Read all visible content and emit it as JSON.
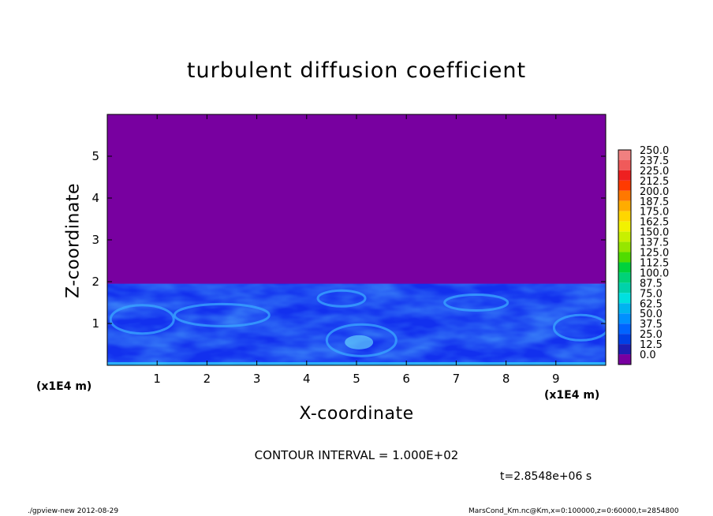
{
  "chart_data": {
    "type": "heatmap",
    "title": "turbulent diffusion coefficient",
    "xlabel": "X-coordinate",
    "ylabel": "Z-coordinate",
    "x_unit": "(x1E4 m)",
    "xlim": [
      0,
      10
    ],
    "ylim": [
      0,
      6
    ],
    "x_ticks": [
      1,
      2,
      3,
      4,
      5,
      6,
      7,
      8,
      9
    ],
    "y_ticks": [
      1,
      2,
      3,
      4,
      5
    ],
    "boundary_layer_top": 1.95,
    "color_levels": [
      "250.0",
      "237.5",
      "225.0",
      "212.5",
      "200.0",
      "187.5",
      "175.0",
      "162.5",
      "150.0",
      "137.5",
      "125.0",
      "112.5",
      "100.0",
      "87.5",
      "75.0",
      "62.5",
      "50.0",
      "37.5",
      "25.0",
      "12.5",
      "0.0"
    ],
    "colors": [
      "#f08080",
      "#f05a5a",
      "#ee2020",
      "#ff3a00",
      "#ff7800",
      "#ffac00",
      "#ffd600",
      "#f2f200",
      "#c8f000",
      "#96e600",
      "#50dc00",
      "#00d23c",
      "#00d278",
      "#00d2aa",
      "#00e0e0",
      "#00b4f0",
      "#0090ff",
      "#0064ff",
      "#0040e6",
      "#1e1eb4",
      "#7800a0"
    ],
    "background_color": "#7800a0",
    "contour_interval_text": "CONTOUR INTERVAL = 1.000E+02",
    "time_text": "t=2.8548e+06 s"
  },
  "footer": {
    "left": "./gpview-new   2012-08-29",
    "right": "MarsCond_Km.nc@Km,x=0:100000,z=0:60000,t=2854800"
  }
}
